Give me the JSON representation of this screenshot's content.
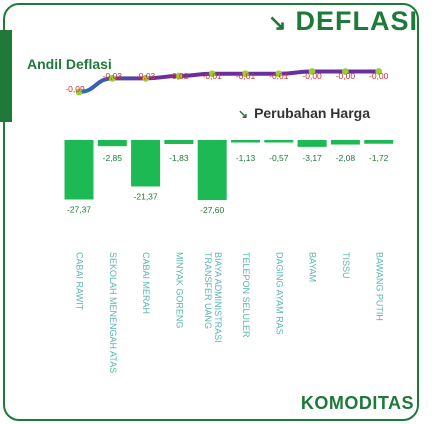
{
  "title": "DEFLASI",
  "title_icon": "down-right-arrow-icon",
  "andil_label": "Andil Deflasi",
  "perubahan_label": "Perubahan Harga",
  "perubahan_icon": "down-right-arrow-icon",
  "footer_label": "KOMODITAS",
  "colors": {
    "primary_green": "#1f7a3a",
    "bar_green": "#1db954",
    "line_purple": "#6a2f9e",
    "dot_green": "#9acd32",
    "label_red": "#d32f2f",
    "category_teal": "#5bb5b0"
  },
  "chart_data": [
    {
      "type": "line",
      "title": "Andil Deflasi",
      "categories": [
        "CABAI RAWIT",
        "SEKOLAH MENENGAH ATAS",
        "CABAI MERAH",
        "MINYAK GORENG",
        "BIAYA ADMINISTRASI TRANSFER UANG",
        "TELEPON SELULER",
        "DAGING AYAM RAS",
        "BAYAM",
        "TISSU",
        "BAWANG PUTIH"
      ],
      "values": [
        -0.09,
        -0.03,
        -0.03,
        -0.02,
        -0.01,
        -0.01,
        -0.01,
        -0.0,
        -0.0,
        -0.0
      ],
      "labels": [
        "-0,09",
        "-0,03",
        "-0,03",
        "-0,02",
        "-0,01",
        "-0,01",
        "-0,01",
        "-0,00",
        "-0,00",
        "-0,00"
      ]
    },
    {
      "type": "bar",
      "title": "Perubahan Harga",
      "xlabel": "KOMODITAS",
      "categories": [
        "CABAI RAWIT",
        "SEKOLAH MENENGAH ATAS",
        "CABAI MERAH",
        "MINYAK GORENG",
        "BIAYA ADMINISTRASI TRANSFER UANG",
        "TELEPON SELULER",
        "DAGING AYAM RAS",
        "BAYAM",
        "TISSU",
        "BAWANG PUTIH"
      ],
      "category_lines": [
        [
          "CABAI RAWIT"
        ],
        [
          "SEKOLAH MENENGAH ATAS"
        ],
        [
          "CABAI MERAH"
        ],
        [
          "MINYAK GORENG"
        ],
        [
          "BIAYA ADMINISTRASI",
          "TRANSFER UANG"
        ],
        [
          "TELEPON SELULER"
        ],
        [
          "DAGING AYAM RAS"
        ],
        [
          "BAYAM"
        ],
        [
          "TISSU"
        ],
        [
          "BAWANG PUTIH"
        ]
      ],
      "values": [
        -27.37,
        -2.85,
        -21.37,
        -1.83,
        -27.6,
        -1.13,
        -0.57,
        -3.17,
        -2.08,
        -1.72
      ],
      "labels": [
        "-27,37",
        "-2,85",
        "-21,37",
        "-1,83",
        "-27,60",
        "-1,13",
        "-0,57",
        "-3,17",
        "-2,08",
        "-1,72"
      ]
    }
  ]
}
